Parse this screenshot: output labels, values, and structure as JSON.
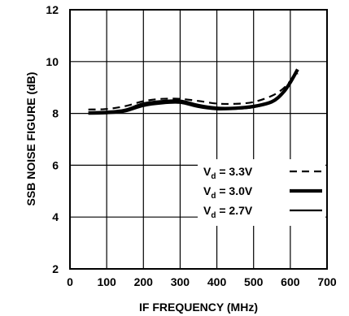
{
  "chart_data": {
    "type": "line",
    "title": "",
    "xlabel": "IF FREQUENCY (MHz)",
    "ylabel": "SSB NOISE FIGURE (dB)",
    "xlim": [
      0,
      700
    ],
    "ylim": [
      2,
      12
    ],
    "xticks": [
      "0",
      "100",
      "200",
      "300",
      "400",
      "500",
      "600",
      "700"
    ],
    "yticks": [
      "2",
      "4",
      "6",
      "8",
      "10",
      "12"
    ],
    "grid": true,
    "legend_position": "bottom-right",
    "series": [
      {
        "name": "3.3V",
        "style": "dashed",
        "x": [
          50,
          100,
          150,
          200,
          250,
          300,
          350,
          400,
          450,
          500,
          550,
          580,
          600,
          620
        ],
        "y": [
          8.15,
          8.17,
          8.28,
          8.47,
          8.56,
          8.56,
          8.48,
          8.38,
          8.37,
          8.44,
          8.68,
          8.95,
          9.25,
          9.55
        ]
      },
      {
        "name": "3.0V",
        "style": "thick",
        "x": [
          50,
          100,
          150,
          200,
          250,
          300,
          350,
          400,
          450,
          500,
          550,
          580,
          600,
          620
        ],
        "y": [
          8.02,
          8.04,
          8.12,
          8.36,
          8.45,
          8.47,
          8.3,
          8.2,
          8.2,
          8.27,
          8.45,
          8.8,
          9.2,
          9.7
        ]
      },
      {
        "name": "2.7V",
        "style": "solid",
        "x": [
          50,
          100,
          150,
          200,
          250,
          300,
          350,
          400,
          450,
          500,
          550,
          580,
          600,
          620
        ],
        "y": [
          7.98,
          8.0,
          8.07,
          8.28,
          8.38,
          8.4,
          8.24,
          8.15,
          8.17,
          8.24,
          8.43,
          8.78,
          9.15,
          9.65
        ]
      }
    ],
    "legend": {
      "prefix_main": "V",
      "prefix_sub": "d",
      "equals": "="
    }
  }
}
